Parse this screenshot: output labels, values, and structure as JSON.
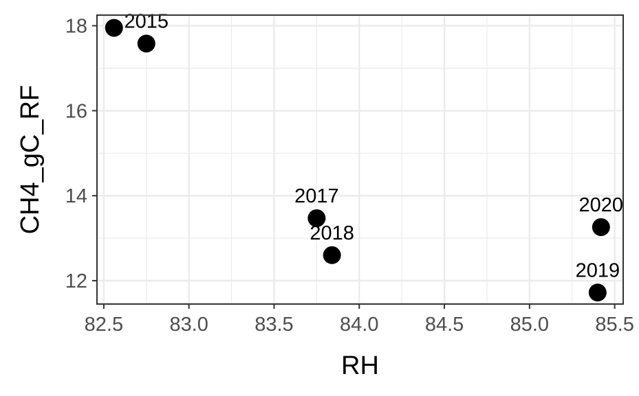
{
  "chart_data": {
    "type": "scatter",
    "xlabel": "RH",
    "ylabel": "CH4_gC_RF",
    "xlim": [
      82.46,
      85.55
    ],
    "ylim": [
      11.45,
      18.25
    ],
    "x_ticks": [
      82.5,
      83.0,
      83.5,
      84.0,
      84.5,
      85.0,
      85.5
    ],
    "x_tick_labels": [
      "82.5",
      "83.0",
      "83.5",
      "84.0",
      "84.5",
      "85.0",
      "85.5"
    ],
    "y_ticks": [
      12,
      14,
      16,
      18
    ],
    "y_tick_labels": [
      "12",
      "14",
      "16",
      "18"
    ],
    "grid": true,
    "points": [
      {
        "x": 82.56,
        "y": 17.95,
        "label": ""
      },
      {
        "x": 82.75,
        "y": 17.58,
        "label": "2015"
      },
      {
        "x": 83.75,
        "y": 13.47,
        "label": "2017"
      },
      {
        "x": 83.84,
        "y": 12.6,
        "label": "2018"
      },
      {
        "x": 85.42,
        "y": 13.26,
        "label": "2020"
      },
      {
        "x": 85.4,
        "y": 11.72,
        "label": "2019"
      }
    ],
    "colors": {
      "point": "#000000",
      "grid": "#ebebeb",
      "panel_border": "#333333",
      "tick_text": "#4d4d4d"
    }
  }
}
